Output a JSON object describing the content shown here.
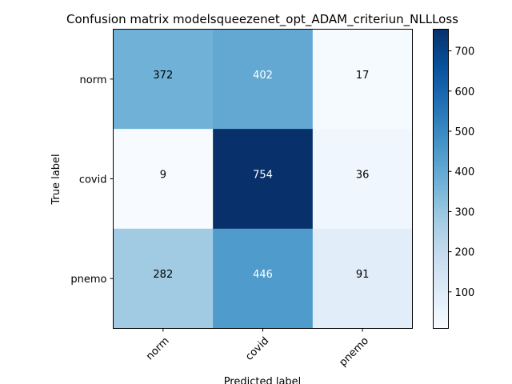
{
  "chart_data": {
    "type": "heatmap",
    "title": "Confusion matrix modelsqueezenet_opt_ADAM_criteriun_NLLLoss",
    "xlabel": "Predicted label",
    "ylabel": "True label",
    "x_categories": [
      "norm",
      "covid",
      "pnemo"
    ],
    "y_categories": [
      "norm",
      "covid",
      "pnemo"
    ],
    "values": [
      [
        372,
        402,
        17
      ],
      [
        9,
        754,
        36
      ],
      [
        282,
        446,
        91
      ]
    ],
    "colormap": "Blues",
    "colorbar": {
      "range": [
        9,
        754
      ],
      "ticks": [
        100,
        200,
        300,
        400,
        500,
        600,
        700
      ]
    },
    "grid": false
  }
}
